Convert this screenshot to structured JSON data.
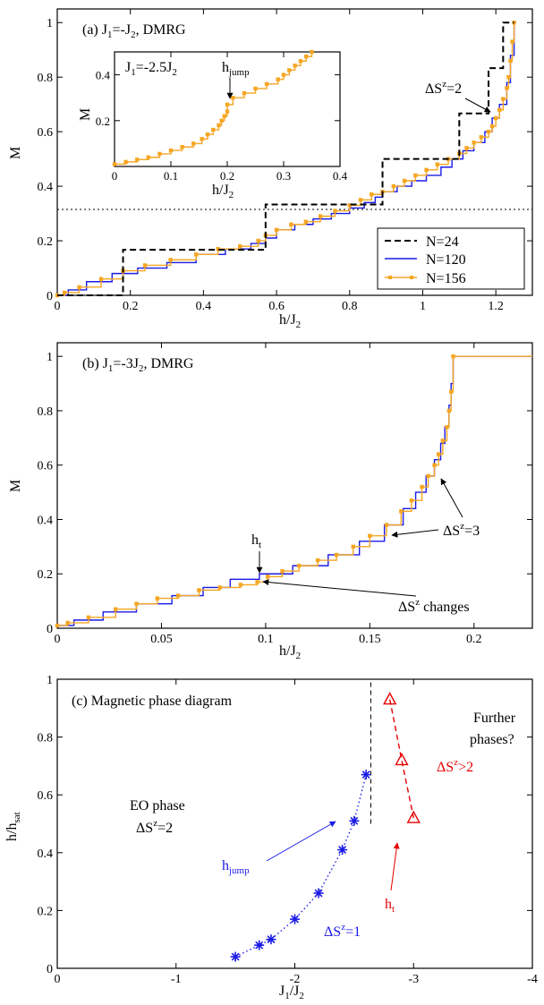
{
  "colors": {
    "n24": "#000000",
    "n120": "#1a1ae6",
    "n156": "#f5a623",
    "eo": "#1a1ae6",
    "red": "#e60000"
  },
  "chart_data": [
    {
      "type": "line",
      "title": "(a) J1=-J2, DMRG",
      "xlabel": "h/J2",
      "ylabel": "M",
      "xlim": [
        0,
        1.3
      ],
      "ylim": [
        0,
        1.05
      ],
      "xticks": [
        "0",
        "0.2",
        "0.4",
        "0.6",
        "0.8",
        "1",
        "1.2"
      ],
      "yticks": [
        "0",
        "0.2",
        "0.4",
        "0.6",
        "0.8",
        "1"
      ],
      "reference_line_y": 0.333,
      "legend_position": "lower-right",
      "series": [
        {
          "name": "N=24",
          "style": "dashed-step",
          "x": [
            0,
            0.18,
            0.18,
            0.57,
            0.57,
            0.89,
            0.89,
            1.1,
            1.1,
            1.18,
            1.18,
            1.22,
            1.22,
            1.25
          ],
          "y": [
            0,
            0,
            0.167,
            0.167,
            0.333,
            0.333,
            0.5,
            0.5,
            0.667,
            0.667,
            0.833,
            0.833,
            1,
            1
          ]
        },
        {
          "name": "N=120",
          "style": "step",
          "x": [
            0,
            0.03,
            0.08,
            0.15,
            0.22,
            0.3,
            0.38,
            0.46,
            0.53,
            0.57,
            0.6,
            0.65,
            0.7,
            0.75,
            0.8,
            0.84,
            0.87,
            0.89,
            0.93,
            0.97,
            1.01,
            1.05,
            1.08,
            1.11,
            1.14,
            1.17,
            1.19,
            1.21,
            1.23,
            1.24,
            1.25
          ],
          "y": [
            0,
            0.02,
            0.05,
            0.08,
            0.1,
            0.12,
            0.15,
            0.17,
            0.19,
            0.21,
            0.24,
            0.26,
            0.28,
            0.3,
            0.32,
            0.34,
            0.36,
            0.38,
            0.4,
            0.42,
            0.44,
            0.47,
            0.5,
            0.53,
            0.56,
            0.6,
            0.65,
            0.7,
            0.78,
            0.88,
            1.0
          ]
        },
        {
          "name": "N=156",
          "style": "step-markers",
          "x": [
            0,
            0.02,
            0.06,
            0.12,
            0.18,
            0.24,
            0.31,
            0.38,
            0.44,
            0.5,
            0.55,
            0.57,
            0.6,
            0.64,
            0.68,
            0.72,
            0.76,
            0.8,
            0.83,
            0.86,
            0.89,
            0.92,
            0.95,
            0.98,
            1.01,
            1.04,
            1.07,
            1.1,
            1.12,
            1.14,
            1.16,
            1.18,
            1.19,
            1.2,
            1.21,
            1.22,
            1.23,
            1.235,
            1.24,
            1.245,
            1.25
          ],
          "y": [
            0,
            0.01,
            0.03,
            0.06,
            0.09,
            0.11,
            0.13,
            0.15,
            0.17,
            0.18,
            0.2,
            0.22,
            0.24,
            0.26,
            0.27,
            0.29,
            0.31,
            0.33,
            0.35,
            0.37,
            0.38,
            0.4,
            0.42,
            0.44,
            0.46,
            0.48,
            0.5,
            0.52,
            0.54,
            0.56,
            0.58,
            0.6,
            0.62,
            0.65,
            0.68,
            0.72,
            0.76,
            0.8,
            0.86,
            0.93,
            1.0
          ]
        }
      ],
      "annotation": "ΔSz=2",
      "inset": {
        "title": "J1=-2.5J2",
        "xlabel": "h/J2",
        "ylabel": "M",
        "xlim": [
          0,
          0.4
        ],
        "ylim": [
          0,
          0.5
        ],
        "xticks": [
          "0",
          "0.1",
          "0.2",
          "0.3",
          "0.4"
        ],
        "yticks": [
          "0.2",
          "0.4"
        ],
        "annotation": "hjump",
        "x": [
          0,
          0.02,
          0.04,
          0.06,
          0.08,
          0.1,
          0.12,
          0.14,
          0.155,
          0.165,
          0.175,
          0.185,
          0.19,
          0.195,
          0.2,
          0.2,
          0.21,
          0.23,
          0.25,
          0.27,
          0.29,
          0.3,
          0.31,
          0.32,
          0.33,
          0.34,
          0.35
        ],
        "y": [
          0.01,
          0.02,
          0.03,
          0.04,
          0.055,
          0.07,
          0.085,
          0.1,
          0.12,
          0.14,
          0.16,
          0.18,
          0.2,
          0.22,
          0.24,
          0.27,
          0.3,
          0.32,
          0.34,
          0.36,
          0.38,
          0.4,
          0.42,
          0.44,
          0.46,
          0.48,
          0.5
        ]
      }
    },
    {
      "type": "line",
      "title": "(b) J1=-3J2, DMRG",
      "xlabel": "h/J2",
      "ylabel": "M",
      "xlim": [
        0,
        0.228
      ],
      "ylim": [
        0,
        1.05
      ],
      "xticks": [
        "0",
        "0.05",
        "0.1",
        "0.15",
        "0.2"
      ],
      "yticks": [
        "0",
        "0.2",
        "0.4",
        "0.6",
        "0.8",
        "1"
      ],
      "series": [
        {
          "name": "N=120",
          "x": [
            0,
            0.008,
            0.022,
            0.038,
            0.055,
            0.07,
            0.083,
            0.097,
            0.113,
            0.13,
            0.145,
            0.157,
            0.166,
            0.172,
            0.177,
            0.181,
            0.184,
            0.186,
            0.188,
            0.189,
            0.19,
            0.228
          ],
          "y": [
            0.01,
            0.03,
            0.06,
            0.09,
            0.12,
            0.15,
            0.18,
            0.2,
            0.23,
            0.27,
            0.32,
            0.38,
            0.44,
            0.5,
            0.56,
            0.62,
            0.68,
            0.74,
            0.82,
            0.9,
            1.0,
            1.0
          ]
        },
        {
          "name": "N=156",
          "x": [
            0,
            0.005,
            0.015,
            0.028,
            0.038,
            0.048,
            0.058,
            0.068,
            0.078,
            0.088,
            0.096,
            0.101,
            0.108,
            0.116,
            0.125,
            0.134,
            0.142,
            0.15,
            0.158,
            0.165,
            0.17,
            0.175,
            0.178,
            0.181,
            0.183,
            0.185,
            0.187,
            0.188,
            0.189,
            0.19,
            0.228
          ],
          "y": [
            0.01,
            0.02,
            0.04,
            0.07,
            0.09,
            0.11,
            0.12,
            0.14,
            0.15,
            0.16,
            0.17,
            0.19,
            0.21,
            0.23,
            0.25,
            0.27,
            0.3,
            0.34,
            0.38,
            0.43,
            0.47,
            0.52,
            0.56,
            0.6,
            0.64,
            0.69,
            0.74,
            0.8,
            0.87,
            1.0,
            1.0
          ]
        }
      ],
      "annotations": [
        "ht",
        "ΔSz=3",
        "ΔSz changes"
      ]
    },
    {
      "type": "scatter",
      "title": "(c) Magnetic phase diagram",
      "xlabel": "J1/J2",
      "ylabel": "h/hsat",
      "xlim": [
        0,
        -4
      ],
      "ylim": [
        0,
        1
      ],
      "xticks": [
        "0",
        "-1",
        "-2",
        "-3",
        "-4"
      ],
      "yticks": [
        "0",
        "0.2",
        "0.4",
        "0.6",
        "0.8",
        "1"
      ],
      "series": [
        {
          "name": "hjump",
          "marker": "asterisk",
          "x": [
            -1.5,
            -1.7,
            -1.8,
            -2.0,
            -2.2,
            -2.4,
            -2.5,
            -2.6
          ],
          "y": [
            0.04,
            0.08,
            0.1,
            0.17,
            0.26,
            0.41,
            0.51,
            0.67
          ]
        },
        {
          "name": "ht",
          "marker": "triangle",
          "x": [
            -2.8,
            -2.9,
            -3.0
          ],
          "y": [
            0.93,
            0.72,
            0.52
          ]
        }
      ],
      "phase_boundary_x": -2.64,
      "labels": [
        "EO phase",
        "ΔSz=2",
        "Further phases?",
        "ΔSz>2",
        "ΔSz=1",
        "hjump",
        "ht"
      ]
    }
  ]
}
